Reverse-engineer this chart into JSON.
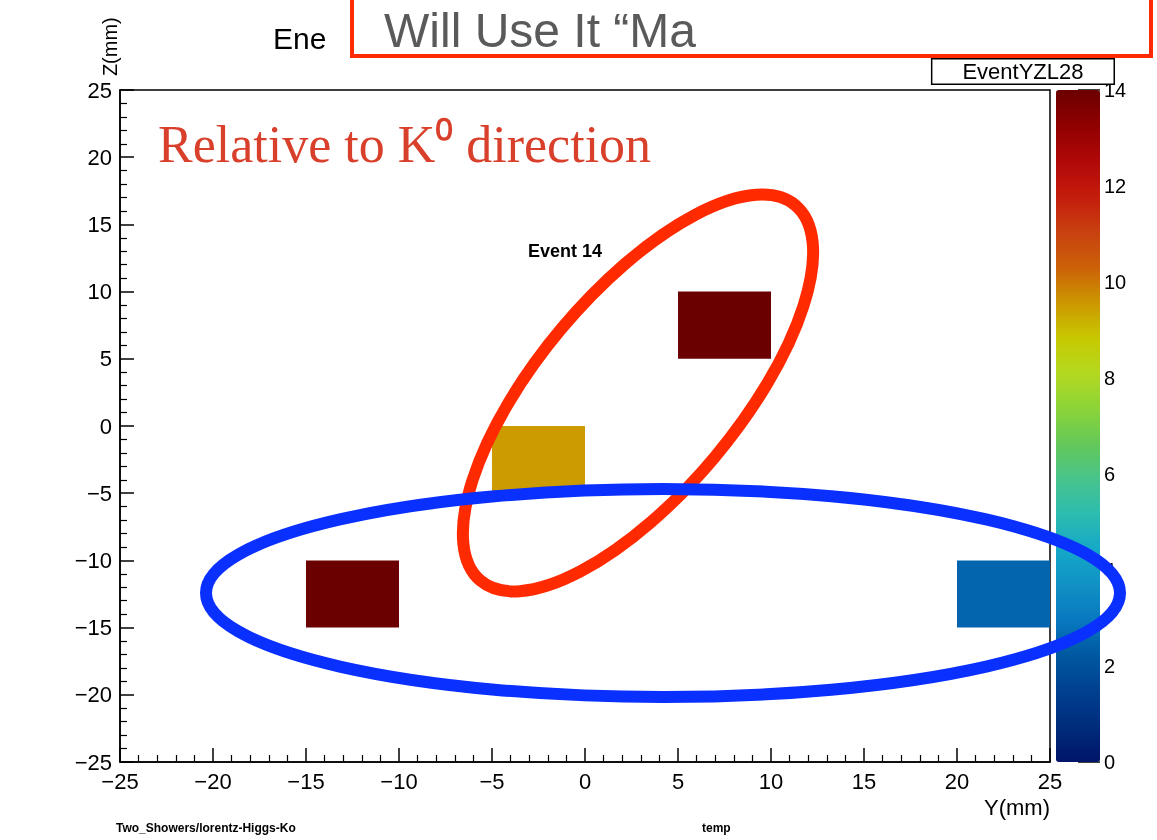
{
  "chart_data": {
    "type": "bar",
    "title": "Ene",
    "xlabel": "Y(mm)",
    "ylabel": "Z(mm)",
    "x": [
      -12.5,
      -2.5,
      7.5,
      22.5
    ],
    "base": [
      -15,
      -5,
      5,
      -15
    ],
    "values": [
      5,
      5,
      5,
      5
    ],
    "cvalues": [
      14,
      9.5,
      14,
      2.5
    ],
    "xlim": [
      -25,
      25
    ],
    "xticks": [
      -25,
      -20,
      -15,
      -10,
      -5,
      0,
      5,
      10,
      15,
      20,
      25
    ],
    "ylim": [
      -25,
      25
    ],
    "yticks": [
      -25,
      -20,
      -15,
      -10,
      -5,
      0,
      5,
      10,
      15,
      20,
      25
    ],
    "clim": [
      0,
      14
    ],
    "cticks": [
      0,
      2,
      4,
      6,
      8,
      10,
      12,
      14
    ],
    "annotations": [
      "Will Use It “Ma",
      "EventYZL28",
      "Relative to K⁰ direction",
      "Event 14",
      "Two_Showers/lorentz-Higgs-Ko",
      "temp"
    ]
  }
}
